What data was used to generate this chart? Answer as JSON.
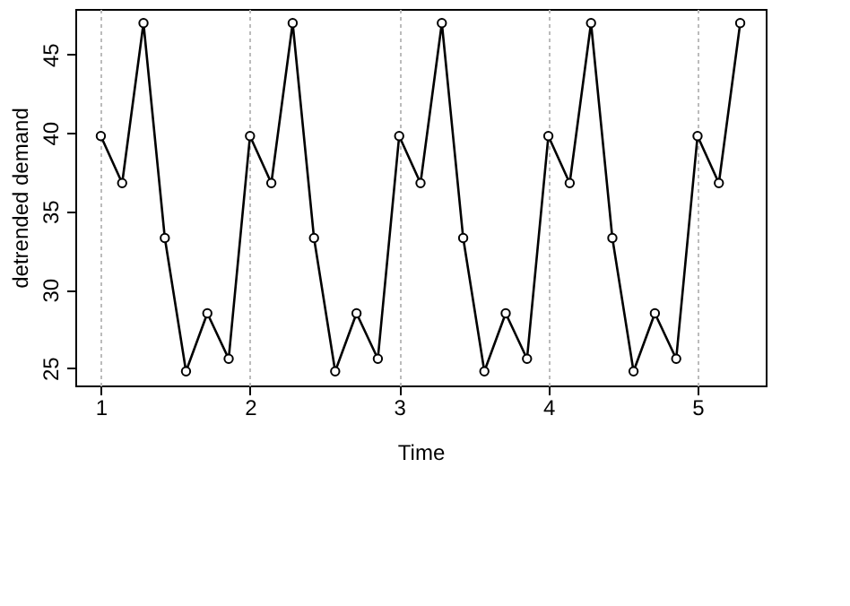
{
  "chart_data": {
    "type": "line",
    "xlabel": "Time",
    "ylabel": "detrended demand",
    "x": [
      1,
      1.143,
      1.286,
      1.429,
      1.571,
      1.714,
      1.857,
      2,
      2.143,
      2.286,
      2.429,
      2.571,
      2.714,
      2.857,
      3,
      3.143,
      3.286,
      3.429,
      3.571,
      3.714,
      3.857,
      4,
      4.143,
      4.286,
      4.429,
      4.571,
      4.714,
      4.857,
      5,
      5.143,
      5.286
    ],
    "series": [
      {
        "color": "#000000",
        "values": [
          39.8,
          36.8,
          47.0,
          33.3,
          24.8,
          28.5,
          25.6,
          39.8,
          36.8,
          47.0,
          33.3,
          24.8,
          28.5,
          25.6,
          39.8,
          36.8,
          47.0,
          33.3,
          24.8,
          28.5,
          25.6,
          39.8,
          36.8,
          47.0,
          33.3,
          24.8,
          28.5,
          25.6,
          39.8,
          36.8,
          47.0
        ]
      }
    ],
    "xlim": [
      0.829,
      5.457
    ],
    "xticks": [
      1,
      2,
      3,
      4,
      5
    ],
    "ylim": [
      23.9,
      47.9
    ],
    "yticks": [
      25,
      30,
      35,
      40,
      45
    ],
    "grid": "x",
    "marker": "circle",
    "line_style": "solid",
    "legend": false
  }
}
